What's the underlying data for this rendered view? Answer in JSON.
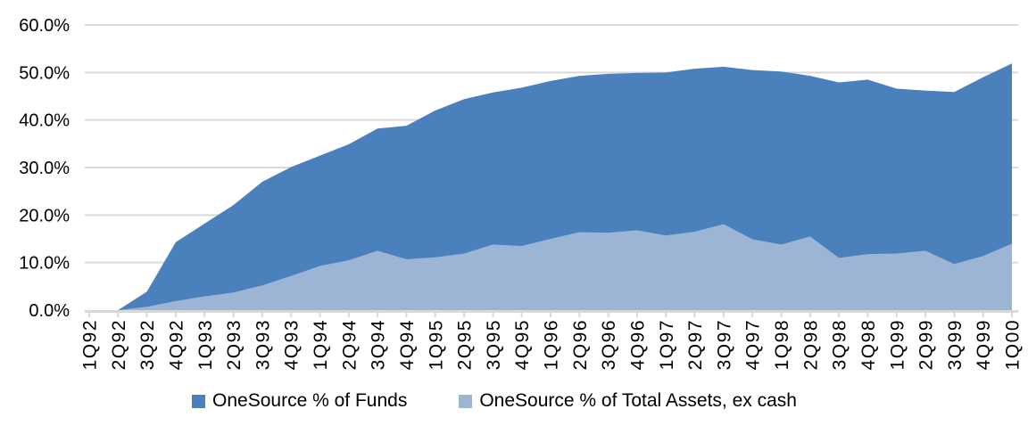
{
  "chart_data": {
    "type": "area",
    "overlapping": true,
    "title": "",
    "categories": [
      "1Q92",
      "2Q92",
      "3Q92",
      "4Q92",
      "1Q93",
      "2Q93",
      "3Q93",
      "4Q93",
      "1Q94",
      "2Q94",
      "3Q94",
      "4Q94",
      "1Q95",
      "2Q95",
      "3Q95",
      "4Q95",
      "1Q96",
      "2Q96",
      "3Q96",
      "4Q96",
      "1Q97",
      "2Q97",
      "3Q97",
      "4Q97",
      "1Q98",
      "2Q98",
      "3Q98",
      "4Q98",
      "1Q99",
      "2Q99",
      "3Q99",
      "4Q99",
      "1Q00"
    ],
    "series": [
      {
        "name": "OneSource % of Funds",
        "color": "#4A81BD",
        "values": [
          0.0,
          0.0,
          3.9,
          14.3,
          18.2,
          22.1,
          27.0,
          30.1,
          32.5,
          34.9,
          38.2,
          38.8,
          42.0,
          44.4,
          45.8,
          46.8,
          48.2,
          49.3,
          49.7,
          49.9,
          50.0,
          50.8,
          51.2,
          50.5,
          50.2,
          49.3,
          47.9,
          48.5,
          46.6,
          46.2,
          45.9,
          49.0,
          51.9
        ]
      },
      {
        "name": "OneSource % of Total Assets, ex cash",
        "color": "#9CB5D5",
        "values": [
          0.0,
          0.0,
          0.7,
          1.9,
          2.9,
          3.7,
          5.2,
          7.2,
          9.3,
          10.5,
          12.5,
          10.7,
          11.1,
          11.9,
          13.8,
          13.5,
          15.0,
          16.4,
          16.3,
          16.8,
          15.7,
          16.5,
          18.1,
          14.9,
          13.8,
          15.5,
          11.0,
          11.8,
          11.9,
          12.5,
          9.7,
          11.4,
          14.0
        ]
      }
    ],
    "y_axis": {
      "min": 0,
      "max": 60,
      "step": 10,
      "tick_labels": [
        "0.0%",
        "10.0%",
        "20.0%",
        "30.0%",
        "40.0%",
        "50.0%",
        "60.0%"
      ]
    },
    "x_axis": {
      "label_rotation": -90
    },
    "legend_position": "bottom",
    "grid": {
      "horizontal": true,
      "color": "#D9D9D9"
    },
    "background": "#FFFFFF"
  }
}
